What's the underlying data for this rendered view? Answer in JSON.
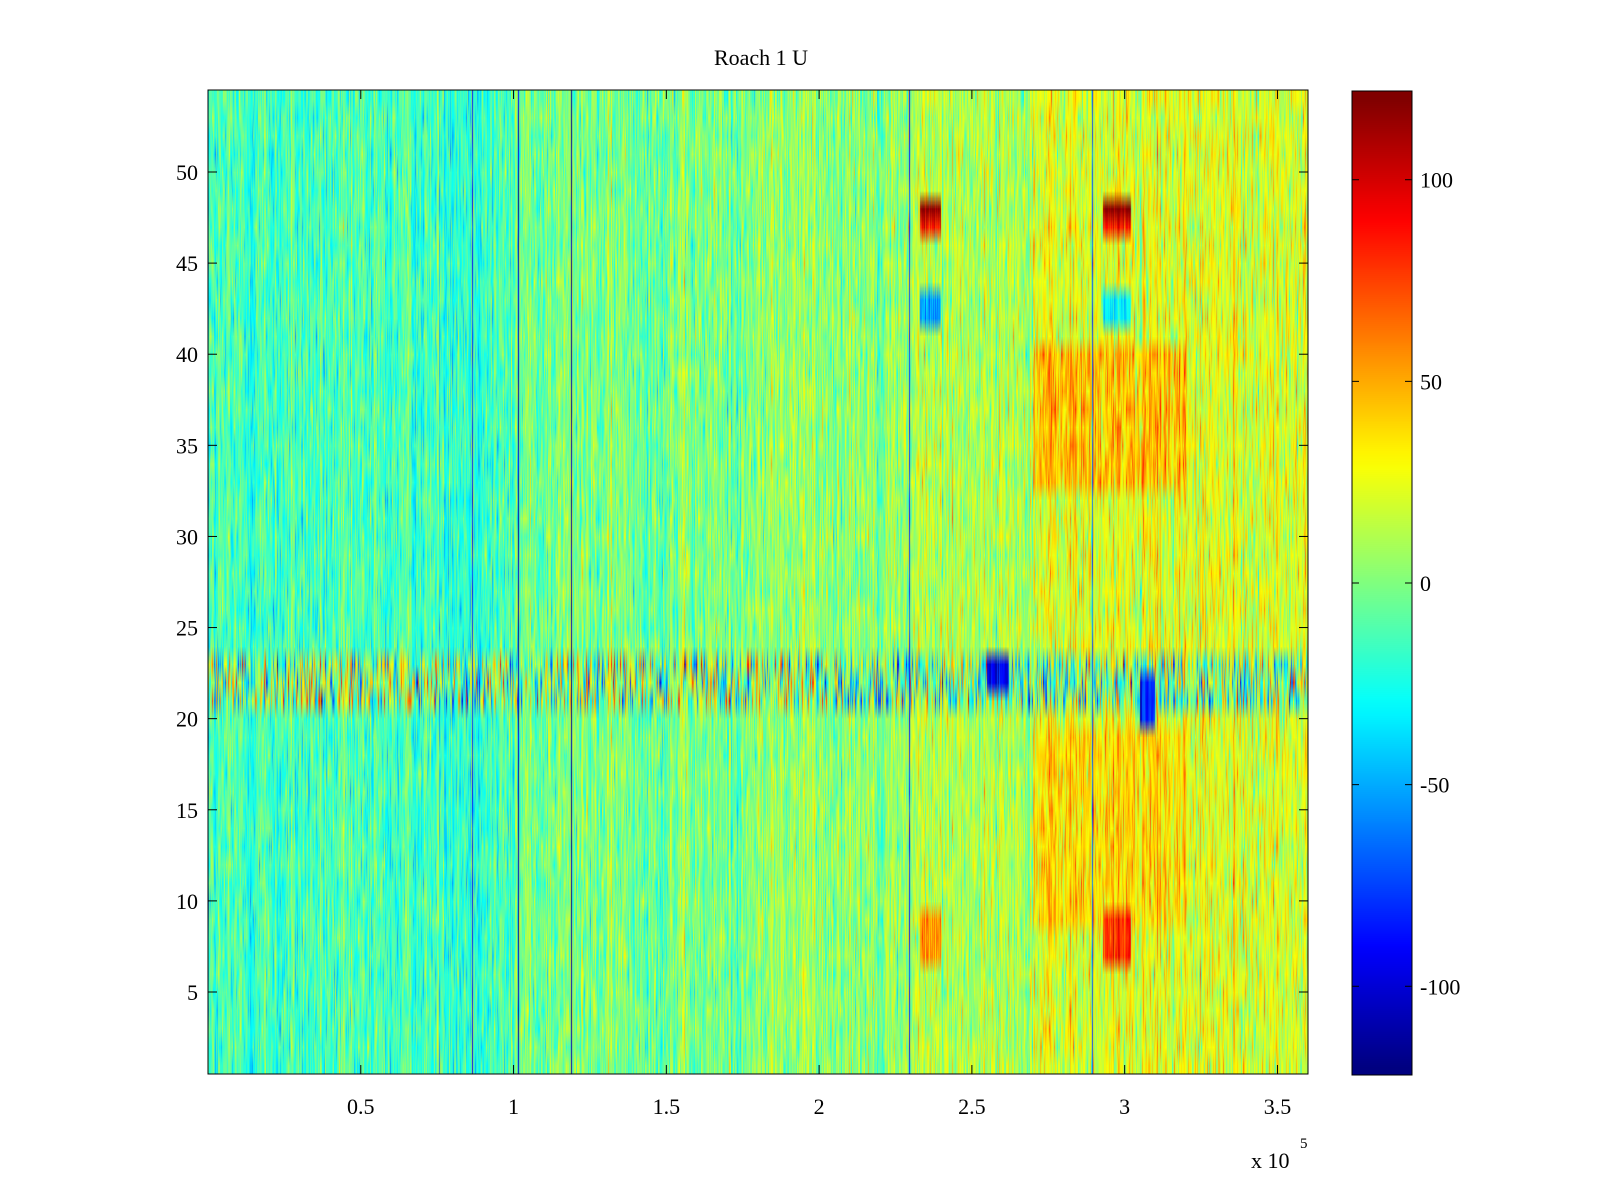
{
  "chart_data": {
    "type": "heatmap",
    "title": "Roach 1 U",
    "xlabel": "",
    "ylabel": "",
    "x_multiplier": "x 10",
    "x_multiplier_exponent": "5",
    "xlim": [
      0,
      360000
    ],
    "ylim": [
      0.5,
      54.5
    ],
    "x_ticks": [
      {
        "value": 50000,
        "label": "0.5"
      },
      {
        "value": 100000,
        "label": "1"
      },
      {
        "value": 150000,
        "label": "1.5"
      },
      {
        "value": 200000,
        "label": "2"
      },
      {
        "value": 250000,
        "label": "2.5"
      },
      {
        "value": 300000,
        "label": "3"
      },
      {
        "value": 350000,
        "label": "3.5"
      }
    ],
    "y_ticks": [
      {
        "value": 5,
        "label": "5"
      },
      {
        "value": 10,
        "label": "10"
      },
      {
        "value": 15,
        "label": "15"
      },
      {
        "value": 20,
        "label": "20"
      },
      {
        "value": 25,
        "label": "25"
      },
      {
        "value": 30,
        "label": "30"
      },
      {
        "value": 35,
        "label": "35"
      },
      {
        "value": 40,
        "label": "40"
      },
      {
        "value": 45,
        "label": "45"
      },
      {
        "value": 50,
        "label": "50"
      }
    ],
    "colorbar": {
      "colormap": "jet",
      "clim": [
        -122,
        122
      ],
      "ticks": [
        {
          "value": 100,
          "label": "100"
        },
        {
          "value": 50,
          "label": "50"
        },
        {
          "value": 0,
          "label": "0"
        },
        {
          "value": -50,
          "label": "-50"
        },
        {
          "value": -100,
          "label": "-100"
        }
      ]
    },
    "rows": 54,
    "regions": [
      {
        "x": [
          0,
          100000
        ],
        "y": [
          1,
          54
        ],
        "mean": -15,
        "spread": 22
      },
      {
        "x": [
          100000,
          180000
        ],
        "y": [
          1,
          54
        ],
        "mean": -2,
        "spread": 22
      },
      {
        "x": [
          180000,
          229000
        ],
        "y": [
          1,
          54
        ],
        "mean": 5,
        "spread": 22
      },
      {
        "x": [
          229000,
          270000
        ],
        "y": [
          1,
          54
        ],
        "mean": 12,
        "spread": 22
      },
      {
        "x": [
          270000,
          360000
        ],
        "y": [
          1,
          54
        ],
        "mean": 22,
        "spread": 25
      },
      {
        "x": [
          270000,
          320000
        ],
        "y": [
          33,
          40
        ],
        "mean": 45,
        "spread": 25
      },
      {
        "x": [
          270000,
          320000
        ],
        "y": [
          9,
          19
        ],
        "mean": 38,
        "spread": 22
      },
      {
        "x": [
          233000,
          240000
        ],
        "y": [
          48,
          48
        ],
        "mean": 120,
        "spread": 3
      },
      {
        "x": [
          233000,
          240000
        ],
        "y": [
          47,
          47
        ],
        "mean": 85,
        "spread": 8
      },
      {
        "x": [
          293000,
          302000
        ],
        "y": [
          48,
          48
        ],
        "mean": 120,
        "spread": 3
      },
      {
        "x": [
          293000,
          302000
        ],
        "y": [
          47,
          47
        ],
        "mean": 85,
        "spread": 8
      },
      {
        "x": [
          233000,
          240000
        ],
        "y": [
          42,
          43
        ],
        "mean": -55,
        "spread": 8
      },
      {
        "x": [
          293000,
          302000
        ],
        "y": [
          42,
          43
        ],
        "mean": -35,
        "spread": 8
      },
      {
        "x": [
          293000,
          302000
        ],
        "y": [
          7,
          9
        ],
        "mean": 80,
        "spread": 12
      },
      {
        "x": [
          233000,
          240000
        ],
        "y": [
          7,
          9
        ],
        "mean": 55,
        "spread": 12
      },
      {
        "x": [
          0,
          360000
        ],
        "y": [
          21,
          23
        ],
        "mean": 0,
        "spread": 70
      },
      {
        "x": [
          255000,
          262000
        ],
        "y": [
          22,
          23
        ],
        "mean": -95,
        "spread": 6
      },
      {
        "x": [
          305000,
          310000
        ],
        "y": [
          20,
          22
        ],
        "mean": -85,
        "spread": 6
      }
    ],
    "dark_vertical_lines": [
      {
        "x": 101500,
        "value": -110
      },
      {
        "x": 119000,
        "value": -115
      },
      {
        "x": 86500,
        "value": -80
      },
      {
        "x": 229500,
        "value": -80
      },
      {
        "x": 289500,
        "value": -70
      }
    ]
  }
}
